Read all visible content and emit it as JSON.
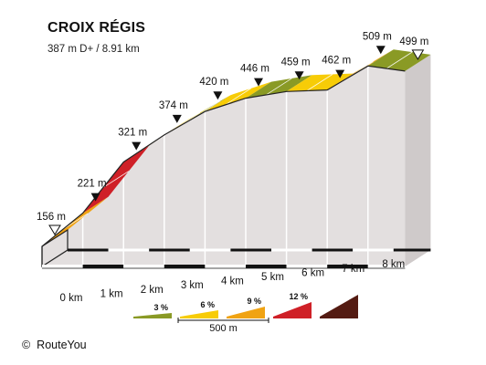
{
  "header": {
    "title": "CROIX RÉGIS",
    "subtitle": "387 m D+ / 8.91 km"
  },
  "credit": {
    "symbol": "©",
    "text": "RouteYou"
  },
  "chart_data": {
    "type": "area",
    "title": "CROIX RÉGIS",
    "subtitle": "387 m D+ / 8.91 km",
    "distance_unit": "km",
    "elevation_unit": "m",
    "x_ticks": [
      {
        "value": 0,
        "label": "0 km"
      },
      {
        "value": 1,
        "label": "1 km"
      },
      {
        "value": 2,
        "label": "2 km"
      },
      {
        "value": 3,
        "label": "3 km"
      },
      {
        "value": 4,
        "label": "4 km"
      },
      {
        "value": 5,
        "label": "5 km"
      },
      {
        "value": 6,
        "label": "6 km"
      },
      {
        "value": 7,
        "label": "7 km"
      },
      {
        "value": 8,
        "label": "8 km"
      }
    ],
    "waypoints": [
      {
        "km": 0,
        "elevation": 156,
        "label": "156 m",
        "marker": "start"
      },
      {
        "km": 1,
        "elevation": 221,
        "label": "221 m",
        "marker": "km"
      },
      {
        "km": 2,
        "elevation": 321,
        "label": "321 m",
        "marker": "km"
      },
      {
        "km": 3,
        "elevation": 374,
        "label": "374 m",
        "marker": "km"
      },
      {
        "km": 4,
        "elevation": 420,
        "label": "420 m",
        "marker": "km"
      },
      {
        "km": 5,
        "elevation": 446,
        "label": "446 m",
        "marker": "km"
      },
      {
        "km": 6,
        "elevation": 459,
        "label": "459 m",
        "marker": "km"
      },
      {
        "km": 7,
        "elevation": 462,
        "label": "462 m",
        "marker": "km"
      },
      {
        "km": 8,
        "elevation": 509,
        "label": "509 m",
        "marker": "km"
      },
      {
        "km": 8.91,
        "elevation": 499,
        "label": "499 m",
        "marker": "end"
      }
    ],
    "segments": [
      {
        "from_km": 0,
        "to_km": 1,
        "gradient_class": "6-9 %"
      },
      {
        "from_km": 1,
        "to_km": 2,
        "gradient_class": "9-12 %"
      },
      {
        "from_km": 2,
        "to_km": 3,
        "gradient_class": "6-9 %"
      },
      {
        "from_km": 3,
        "to_km": 3.5,
        "gradient_class": "3-6 %"
      },
      {
        "from_km": 3.5,
        "to_km": 4,
        "gradient_class": "0-3 %"
      },
      {
        "from_km": 4,
        "to_km": 5,
        "gradient_class": "3-6 %"
      },
      {
        "from_km": 5,
        "to_km": 6,
        "gradient_class": "0-3 %"
      },
      {
        "from_km": 6,
        "to_km": 7,
        "gradient_class": "3-6 %"
      },
      {
        "from_km": 7,
        "to_km": 8,
        "gradient_class": "6-9 %"
      },
      {
        "from_km": 8,
        "to_km": 8.91,
        "gradient_class": "0-3 %"
      }
    ],
    "legend": {
      "placement": "bottom-center",
      "items": [
        {
          "label": "3 %",
          "color": "#8a9a25"
        },
        {
          "label": "6 %",
          "color": "#f7cc07"
        },
        {
          "label": "9 %",
          "color": "#f0a313"
        },
        {
          "label": "12 %",
          "color": "#cf2027"
        },
        {
          "label": "",
          "color": "#541b12"
        }
      ],
      "scale_label": "500 m"
    },
    "colors": {
      "0-3 %": "#8a9a25",
      "3-6 %": "#f7cc07",
      "6-9 %": "#f0a313",
      "9-12 %": "#cf2027",
      "12+ %": "#541b12",
      "side": "#e3dfdf",
      "outline": "#222222"
    },
    "grid": false
  }
}
